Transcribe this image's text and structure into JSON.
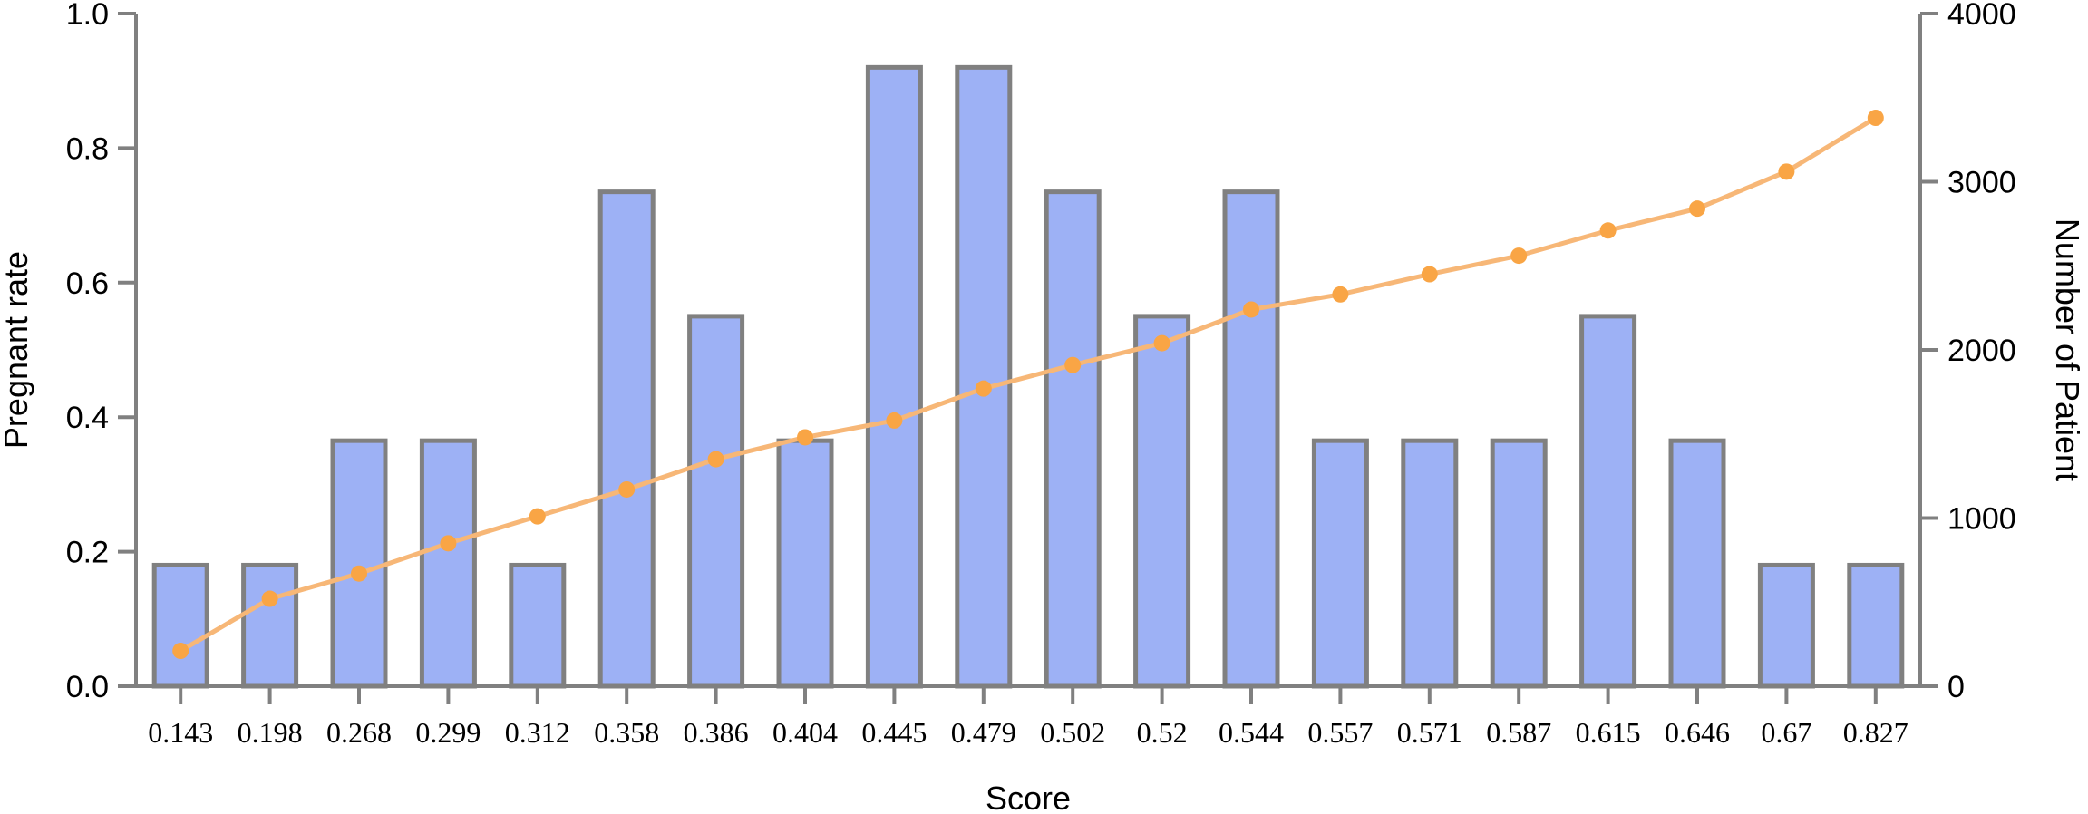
{
  "chart_data": {
    "type": "bar",
    "categories": [
      "0.143",
      "0.198",
      "0.268",
      "0.299",
      "0.312",
      "0.358",
      "0.386",
      "0.404",
      "0.445",
      "0.479",
      "0.502",
      "0.52",
      "0.544",
      "0.557",
      "0.571",
      "0.587",
      "0.615",
      "0.646",
      "0.67",
      "0.827"
    ],
    "series": [
      {
        "type": "bar",
        "axis": "left",
        "values": [
          0.18,
          0.18,
          0.365,
          0.365,
          0.18,
          0.735,
          0.55,
          0.365,
          0.92,
          0.92,
          0.735,
          0.55,
          0.735,
          0.365,
          0.365,
          0.365,
          0.55,
          0.365,
          0.18,
          0.18
        ],
        "color": "#9db1f5",
        "edge_color": "#808080"
      },
      {
        "type": "line",
        "axis": "right",
        "values": [
          210,
          520,
          670,
          850,
          1010,
          1170,
          1350,
          1480,
          1580,
          1770,
          1910,
          2040,
          2240,
          2330,
          2450,
          2560,
          2710,
          2840,
          3060,
          3380
        ],
        "color": "#f7b777",
        "marker_color": "#f9a545"
      }
    ],
    "xlabel": "Score",
    "ylabel": "Pregnant rate",
    "y2label": "Number of Patient",
    "ylim": [
      0,
      1.0
    ],
    "y2lim": [
      0,
      4000
    ],
    "yticks": [
      "0.0",
      "0.2",
      "0.4",
      "0.6",
      "0.8",
      "1.0"
    ],
    "y2ticks": [
      "0",
      "1000",
      "2000",
      "3000",
      "4000"
    ],
    "grid": false,
    "legend": false
  }
}
